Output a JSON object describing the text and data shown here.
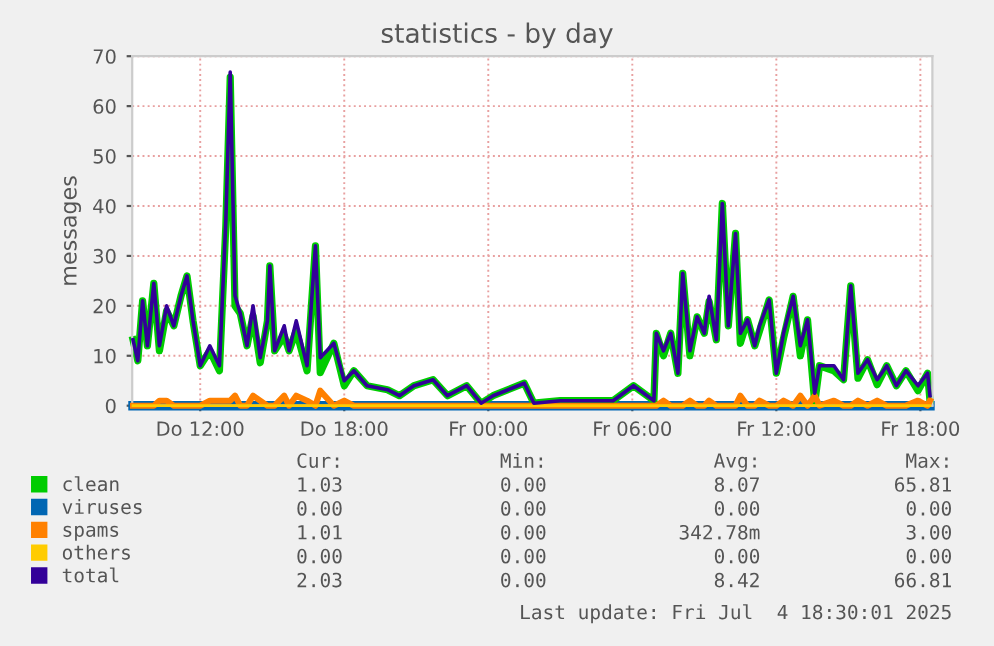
{
  "chart_data": {
    "type": "line",
    "title": "statistics - by day",
    "ylabel": "messages",
    "x": [
      "2025-07-03T09:12",
      "2025-07-03T09:24",
      "2025-07-03T09:36",
      "2025-07-03T09:48",
      "2025-07-03T10:04",
      "2025-07-03T10:18",
      "2025-07-03T10:36",
      "2025-07-03T10:54",
      "2025-07-03T11:12",
      "2025-07-03T11:27",
      "2025-07-03T11:42",
      "2025-07-03T12:00",
      "2025-07-03T12:24",
      "2025-07-03T12:48",
      "2025-07-03T13:04",
      "2025-07-03T13:15",
      "2025-07-03T13:27",
      "2025-07-03T13:40",
      "2025-07-03T13:57",
      "2025-07-03T14:12",
      "2025-07-03T14:30",
      "2025-07-03T14:48",
      "2025-07-03T14:54",
      "2025-07-03T15:06",
      "2025-07-03T15:30",
      "2025-07-03T15:42",
      "2025-07-03T16:00",
      "2025-07-03T16:27",
      "2025-07-03T16:48",
      "2025-07-03T17:00",
      "2025-07-03T17:34",
      "2025-07-03T18:00",
      "2025-07-03T18:24",
      "2025-07-03T18:57",
      "2025-07-03T19:48",
      "2025-07-03T20:18",
      "2025-07-03T20:54",
      "2025-07-03T21:42",
      "2025-07-03T22:18",
      "2025-07-03T23:06",
      "2025-07-03T23:42",
      "2025-07-04T00:12",
      "2025-07-04T01:30",
      "2025-07-04T01:54",
      "2025-07-04T03:00",
      "2025-07-04T04:06",
      "2025-07-04T05:12",
      "2025-07-04T06:03",
      "2025-07-04T06:54",
      "2025-07-04T07:00",
      "2025-07-04T07:18",
      "2025-07-04T07:36",
      "2025-07-04T07:54",
      "2025-07-04T08:06",
      "2025-07-04T08:24",
      "2025-07-04T08:42",
      "2025-07-04T09:00",
      "2025-07-04T09:12",
      "2025-07-04T09:30",
      "2025-07-04T09:45",
      "2025-07-04T10:00",
      "2025-07-04T10:18",
      "2025-07-04T10:30",
      "2025-07-04T10:48",
      "2025-07-04T11:06",
      "2025-07-04T11:18",
      "2025-07-04T11:42",
      "2025-07-04T12:00",
      "2025-07-04T12:18",
      "2025-07-04T12:42",
      "2025-07-04T13:00",
      "2025-07-04T13:18",
      "2025-07-04T13:36",
      "2025-07-04T13:48",
      "2025-07-04T14:24",
      "2025-07-04T14:48",
      "2025-07-04T15:06",
      "2025-07-04T15:24",
      "2025-07-04T15:48",
      "2025-07-04T16:12",
      "2025-07-04T16:36",
      "2025-07-04T17:00",
      "2025-07-04T17:24",
      "2025-07-04T17:54",
      "2025-07-04T18:18",
      "2025-07-04T18:24"
    ],
    "series": [
      {
        "name": "clean",
        "color": "#00cc00",
        "values": [
          13.2,
          9,
          21,
          12,
          24.5,
          11,
          19,
          16,
          22,
          26,
          17,
          8,
          11,
          7,
          36,
          65.8,
          20,
          18.5,
          12,
          18,
          8.6,
          17,
          28,
          11,
          14,
          11,
          15,
          7,
          32,
          6.6,
          12.5,
          4,
          7,
          4,
          3.2,
          2,
          4,
          5.2,
          2,
          4,
          0.5,
          2,
          4.5,
          0.5,
          1,
          1,
          1,
          4,
          1,
          14.5,
          10,
          14.5,
          6.5,
          26.5,
          10,
          17.8,
          14.5,
          20.9,
          13.2,
          40.5,
          16,
          34.5,
          12.5,
          17.2,
          12,
          15,
          21.2,
          6.5,
          13.5,
          21.9,
          10,
          17.2,
          0.5,
          8,
          7,
          5.2,
          24,
          5.5,
          9.2,
          4.2,
          8,
          4,
          7,
          3,
          6.5,
          1.0
        ]
      },
      {
        "name": "viruses",
        "color": "#0066b3",
        "values": [
          0,
          0,
          0,
          0,
          0,
          0,
          0,
          0,
          0,
          0,
          0,
          0,
          0,
          0,
          0,
          0,
          0,
          0,
          0,
          0,
          0,
          0,
          0,
          0,
          0,
          0,
          0,
          0,
          0,
          0,
          0,
          0,
          0,
          0,
          0,
          0,
          0,
          0,
          0,
          0,
          0,
          0,
          0,
          0,
          0,
          0,
          0,
          0,
          0,
          0,
          0,
          0,
          0,
          0,
          0,
          0,
          0,
          0,
          0,
          0,
          0,
          0,
          0,
          0,
          0,
          0,
          0,
          0,
          0,
          0,
          0,
          0,
          0,
          0,
          0,
          0,
          0,
          0,
          0,
          0,
          0,
          0,
          0,
          0,
          0,
          0
        ]
      },
      {
        "name": "spams",
        "color": "#ff8000",
        "values": [
          0,
          0,
          0,
          0,
          0,
          1,
          1,
          0,
          0,
          0,
          0,
          0,
          1,
          1,
          1,
          1,
          2,
          0,
          0,
          2,
          1,
          0,
          0,
          0,
          2,
          0,
          2,
          1,
          0,
          3,
          0,
          1,
          0,
          0,
          0,
          0,
          0,
          0,
          0,
          0,
          0,
          0,
          0,
          0,
          0,
          0,
          0,
          0,
          0,
          0,
          1,
          0,
          0,
          0,
          1,
          0,
          0,
          1,
          0,
          0,
          0,
          0,
          2,
          0,
          0,
          1,
          0,
          0,
          1,
          0,
          2,
          0,
          2,
          0,
          1,
          0,
          0,
          1,
          0,
          1,
          0,
          0,
          0,
          1,
          0,
          1
        ]
      },
      {
        "name": "others",
        "color": "#ffcc00",
        "values": [
          0,
          0,
          0,
          0,
          0,
          0,
          0,
          0,
          0,
          0,
          0,
          0,
          0,
          0,
          0,
          0,
          0,
          0,
          0,
          0,
          0,
          0,
          0,
          0,
          0,
          0,
          0,
          0,
          0,
          0,
          0,
          0,
          0,
          0,
          0,
          0,
          0,
          0,
          0,
          0,
          0,
          0,
          0,
          0,
          0,
          0,
          0,
          0,
          0,
          0,
          0,
          0,
          0,
          0,
          0,
          0,
          0,
          0,
          0,
          0,
          0,
          0,
          0,
          0,
          0,
          0,
          0,
          0,
          0,
          0,
          0,
          0,
          0,
          0,
          0,
          0,
          0,
          0,
          0,
          0,
          0,
          0,
          0,
          0,
          0,
          0
        ]
      },
      {
        "name": "total",
        "color": "#330099",
        "values": [
          13.2,
          9,
          21,
          12,
          24.5,
          12,
          20,
          16,
          22,
          26,
          17,
          8,
          12,
          8,
          37,
          66.8,
          22,
          18.5,
          12,
          20,
          9.6,
          17,
          28,
          11,
          16,
          11,
          17,
          8,
          32,
          9.6,
          12.5,
          5,
          7,
          4,
          3.2,
          2,
          4,
          5.2,
          2,
          4,
          0.5,
          2,
          4.5,
          0.5,
          1,
          1,
          1,
          4,
          1,
          14.5,
          11,
          14.5,
          6.5,
          26.5,
          11,
          17.8,
          14.5,
          21.9,
          13.2,
          40.5,
          16,
          34.5,
          14.5,
          17.2,
          12,
          16,
          21.2,
          6.5,
          14.5,
          21.9,
          12,
          17.2,
          2.5,
          8,
          8,
          5.2,
          24,
          6.5,
          9.2,
          5.2,
          8,
          4,
          7,
          4,
          6.5,
          2.0
        ]
      }
    ],
    "xlim": [
      "2025-07-03T09:10",
      "2025-07-04T18:30"
    ],
    "xticks": [
      {
        "value": "2025-07-03T12:00",
        "label": "Do 12:00"
      },
      {
        "value": "2025-07-03T18:00",
        "label": "Do 18:00"
      },
      {
        "value": "2025-07-04T00:00",
        "label": "Fr 00:00"
      },
      {
        "value": "2025-07-04T06:00",
        "label": "Fr 06:00"
      },
      {
        "value": "2025-07-04T12:00",
        "label": "Fr 12:00"
      },
      {
        "value": "2025-07-04T18:00",
        "label": "Fr 18:00"
      }
    ],
    "ylim": [
      0,
      70
    ],
    "yticks": [
      0,
      10,
      20,
      30,
      40,
      50,
      60,
      70
    ],
    "grid": true,
    "legend": "bottom left",
    "line_style": "solid",
    "marker": "none",
    "annotations": [
      "Cur:",
      "Min:",
      "Avg:",
      "Max:",
      "1.03",
      "0.00",
      "8.07",
      "65.81",
      "0.00",
      "0.00",
      "0.00",
      "0.00",
      "1.01",
      "0.00",
      "342.78m",
      "3.00",
      "0.00",
      "0.00",
      "0.00",
      "0.00",
      "2.03",
      "0.00",
      "8.42",
      "66.81",
      "Last update: Fri Jul  4 18:30:01 2025"
    ]
  }
}
